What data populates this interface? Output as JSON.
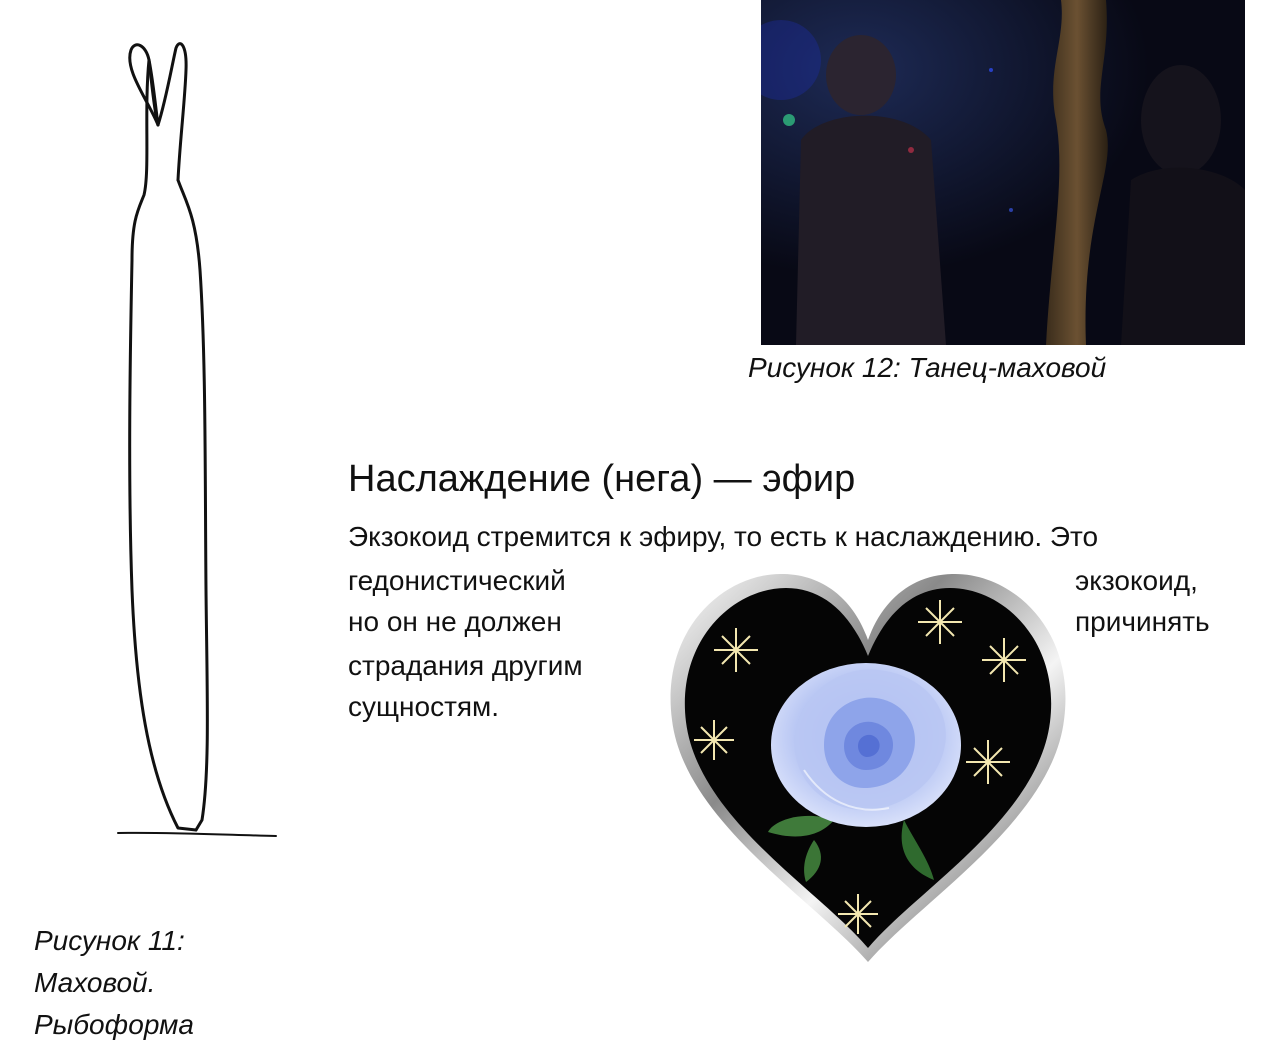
{
  "figure11": {
    "caption": [
      "Рисунок 11:",
      "Маховой.",
      "Рыбоформа"
    ]
  },
  "figure12": {
    "caption": "Рисунок 12: Танец-маховой"
  },
  "section": {
    "heading": "Наслаждение (нега) — эфир",
    "lines": {
      "line1": "Экзокоид стремится к эфиру, то есть к наслаждению. Это",
      "line2_left": "гедонистический",
      "line2_right": "экзокоид,",
      "line3_left": "но он не должен",
      "line3_right": "причинять",
      "line4": "страдания другим",
      "line5": "сущностям."
    }
  },
  "colors": {
    "text": "#111111",
    "photo_background": "#0b0c1d",
    "heart_fill": "#050505",
    "rose": "#8fa4e6"
  },
  "icons": {
    "sketch": "fish-form-figure-sketch",
    "photo": "dance-photo",
    "heart": "heart-with-blue-rose-image"
  }
}
